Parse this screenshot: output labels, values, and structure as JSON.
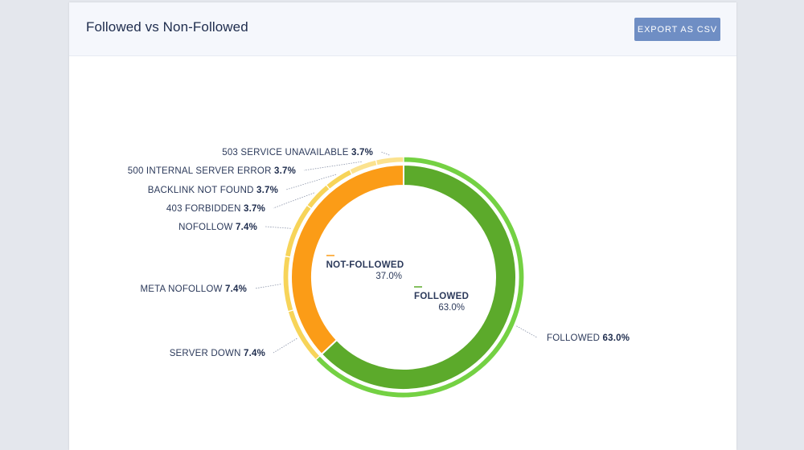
{
  "header": {
    "title": "Followed vs Non-Followed",
    "export_label": "EXPORT AS CSV"
  },
  "colors": {
    "followed_inner": "#5caa2b",
    "followed_outer": "#74d143",
    "not_followed_inner": "#fb9c17",
    "non_followed_outer": "#f7d459",
    "non_followed_outer_light": "#fbe28f"
  },
  "chart_data": {
    "type": "pie",
    "variant": "nested-donut",
    "inner": [
      {
        "name": "NOT-FOLLOWED",
        "value": 37.0,
        "pct_text": "37.0%"
      },
      {
        "name": "FOLLOWED",
        "value": 63.0,
        "pct_text": "63.0%"
      }
    ],
    "outer": [
      {
        "name": "FOLLOWED",
        "value": 63.0,
        "pct_text": "63.0%"
      },
      {
        "name": "SERVER DOWN",
        "value": 7.4,
        "pct_text": "7.4%"
      },
      {
        "name": "META NOFOLLOW",
        "value": 7.4,
        "pct_text": "7.4%"
      },
      {
        "name": "NOFOLLOW",
        "value": 7.4,
        "pct_text": "7.4%"
      },
      {
        "name": "403 FORBIDDEN",
        "value": 3.7,
        "pct_text": "3.7%"
      },
      {
        "name": "BACKLINK NOT FOUND",
        "value": 3.7,
        "pct_text": "3.7%"
      },
      {
        "name": "500 INTERNAL SERVER ERROR",
        "value": 3.7,
        "pct_text": "3.7%"
      },
      {
        "name": "503 SERVICE UNAVAILABLE",
        "value": 3.7,
        "pct_text": "3.7%"
      }
    ]
  }
}
